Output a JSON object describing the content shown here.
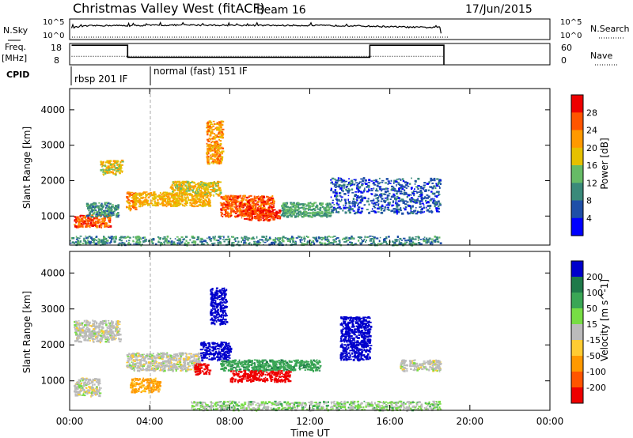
{
  "header": {
    "title": "Christmas Valley West (fitACF)",
    "beam": "Beam 16",
    "date": "17/Jun/2015"
  },
  "nsky_panel": {
    "label": "N.Sky",
    "left_ticks": [
      "10^5",
      "10^0"
    ],
    "right_ticks": [
      "10^5",
      "10^0"
    ],
    "right_label": "N.Search"
  },
  "freq_panel": {
    "label_line1": "Freq.",
    "label_line2": "[MHz]",
    "left_ticks": [
      "18",
      "8"
    ],
    "right_ticks": [
      "60",
      "0"
    ],
    "right_label": "Nave"
  },
  "cpid_panel": {
    "label": "CPID",
    "segments": [
      "rbsp 201 IF",
      "normal (fast) 151 IF"
    ]
  },
  "time_axis": {
    "label": "Time UT",
    "ticks": [
      "00:00",
      "04:00",
      "08:00",
      "12:00",
      "16:00",
      "20:00",
      "00:00"
    ]
  },
  "power_panel": {
    "ylabel": "Slant Range [km]",
    "yticks": [
      "4000",
      "3000",
      "2000",
      "1000"
    ],
    "colorbar_label": "Power [dB]",
    "colorbar_ticks": [
      "28",
      "24",
      "20",
      "16",
      "12",
      "8",
      "4"
    ],
    "colors": [
      "#0000ff",
      "#1f4fa8",
      "#3a8a7a",
      "#66bb66",
      "#e6c000",
      "#ff9900",
      "#ff5500",
      "#ee0000"
    ]
  },
  "velocity_panel": {
    "ylabel": "Slant Range [km]",
    "yticks": [
      "4000",
      "3000",
      "2000",
      "1000"
    ],
    "colorbar_label": "Velocity [m s^-1]",
    "colorbar_ticks": [
      "200",
      "100",
      "50",
      "15",
      "-15",
      "-50",
      "-100",
      "-200"
    ],
    "colors": [
      "#0000cc",
      "#1f7a4a",
      "#3aa655",
      "#77dd44",
      "#bbbbbb",
      "#ffcc33",
      "#ff9900",
      "#ff5500",
      "#ee0000"
    ]
  },
  "chart_data": [
    {
      "type": "line",
      "title": "N.Sky / N.Search",
      "x_range_hours": [
        0,
        24
      ],
      "series": [
        {
          "name": "N.Sky",
          "x": [
            0.1,
            1,
            2,
            3,
            4,
            6,
            8,
            10,
            12,
            14,
            16,
            17,
            18.5,
            18.6
          ],
          "y_level": [
            0.6,
            0.7,
            0.72,
            0.7,
            0.73,
            0.74,
            0.73,
            0.72,
            0.72,
            0.7,
            0.65,
            0.62,
            0.6,
            0.1
          ]
        }
      ]
    },
    {
      "type": "line",
      "title": "Freq. [MHz]",
      "x_range_hours": [
        0,
        24
      ],
      "y_range": [
        8,
        18
      ],
      "series": [
        {
          "name": "Freq.",
          "x": [
            0.1,
            2.9,
            2.9,
            15.0,
            15.0,
            18.7,
            18.7
          ],
          "y": [
            17.2,
            17.2,
            11.5,
            11.5,
            17.2,
            17.2,
            8
          ]
        },
        {
          "name": "Nave",
          "x": [
            0.1,
            18.7
          ],
          "y": [
            12,
            12
          ]
        }
      ]
    },
    {
      "type": "heatmap",
      "title": "Power [dB]",
      "x_range_hours": [
        0,
        24
      ],
      "y_range_km": [
        180,
        4600
      ],
      "regions": [
        {
          "t": [
            0.2,
            2.0
          ],
          "r": [
            700,
            1050
          ],
          "value_db": 26
        },
        {
          "t": [
            0.8,
            2.4
          ],
          "r": [
            1000,
            1400
          ],
          "value_db": 10
        },
        {
          "t": [
            1.5,
            2.6
          ],
          "r": [
            2200,
            2600
          ],
          "value_db": 18
        },
        {
          "t": [
            2.8,
            3.3
          ],
          "r": [
            1200,
            1700
          ],
          "value_db": 22
        },
        {
          "t": [
            3.2,
            7.0
          ],
          "r": [
            1300,
            1700
          ],
          "value_db": 20
        },
        {
          "t": [
            5.0,
            7.5
          ],
          "r": [
            1600,
            2000
          ],
          "value_db": 18
        },
        {
          "t": [
            6.8,
            7.6
          ],
          "r": [
            2500,
            3700
          ],
          "value_db": 22
        },
        {
          "t": [
            7.5,
            10.2
          ],
          "r": [
            1000,
            1600
          ],
          "value_db": 26
        },
        {
          "t": [
            8.5,
            10.5
          ],
          "r": [
            900,
            1200
          ],
          "value_db": 28
        },
        {
          "t": [
            10.5,
            13.0
          ],
          "r": [
            1000,
            1400
          ],
          "value_db": 12
        },
        {
          "t": [
            13.0,
            18.5
          ],
          "r": [
            1100,
            2100
          ],
          "value_db": 6
        },
        {
          "t": [
            0.0,
            18.5
          ],
          "r": [
            200,
            450
          ],
          "value_db": 10
        }
      ]
    },
    {
      "type": "heatmap",
      "title": "Velocity [m s^-1]",
      "x_range_hours": [
        0,
        24
      ],
      "y_range_km": [
        180,
        4600
      ],
      "regions": [
        {
          "t": [
            0.2,
            1.5
          ],
          "r": [
            600,
            1100
          ],
          "value_ms": 0
        },
        {
          "t": [
            0.2,
            2.5
          ],
          "r": [
            2100,
            2700
          ],
          "value_ms": 0
        },
        {
          "t": [
            2.8,
            6.5
          ],
          "r": [
            1300,
            1800
          ],
          "value_ms": 0
        },
        {
          "t": [
            3.0,
            4.5
          ],
          "r": [
            700,
            1100
          ],
          "value_ms": -40
        },
        {
          "t": [
            6.2,
            7.0
          ],
          "r": [
            1200,
            1500
          ],
          "value_ms": -200
        },
        {
          "t": [
            6.5,
            8.0
          ],
          "r": [
            1600,
            2100
          ],
          "value_ms": 200
        },
        {
          "t": [
            7.0,
            7.8
          ],
          "r": [
            2600,
            3600
          ],
          "value_ms": 200
        },
        {
          "t": [
            7.5,
            12.5
          ],
          "r": [
            1300,
            1600
          ],
          "value_ms": 60
        },
        {
          "t": [
            8.0,
            11.0
          ],
          "r": [
            1000,
            1300
          ],
          "value_ms": -180
        },
        {
          "t": [
            13.5,
            15.0
          ],
          "r": [
            1600,
            2800
          ],
          "value_ms": 200
        },
        {
          "t": [
            16.5,
            18.5
          ],
          "r": [
            1300,
            1600
          ],
          "value_ms": 0
        },
        {
          "t": [
            6.0,
            18.5
          ],
          "r": [
            200,
            450
          ],
          "value_ms": 15
        }
      ]
    }
  ]
}
